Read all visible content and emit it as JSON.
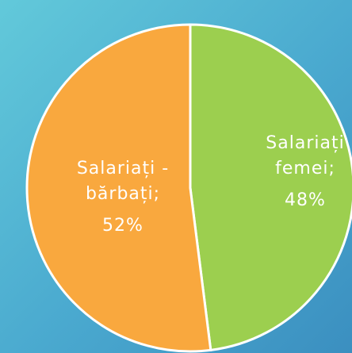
{
  "chart_data": {
    "type": "pie",
    "categories": [
      "Salariați femei;",
      "Salariați -bărbați;"
    ],
    "values": [
      48,
      52
    ],
    "value_labels": [
      "48%",
      "52%"
    ],
    "colors": [
      "#9ccf4f",
      "#f9a83e"
    ]
  }
}
